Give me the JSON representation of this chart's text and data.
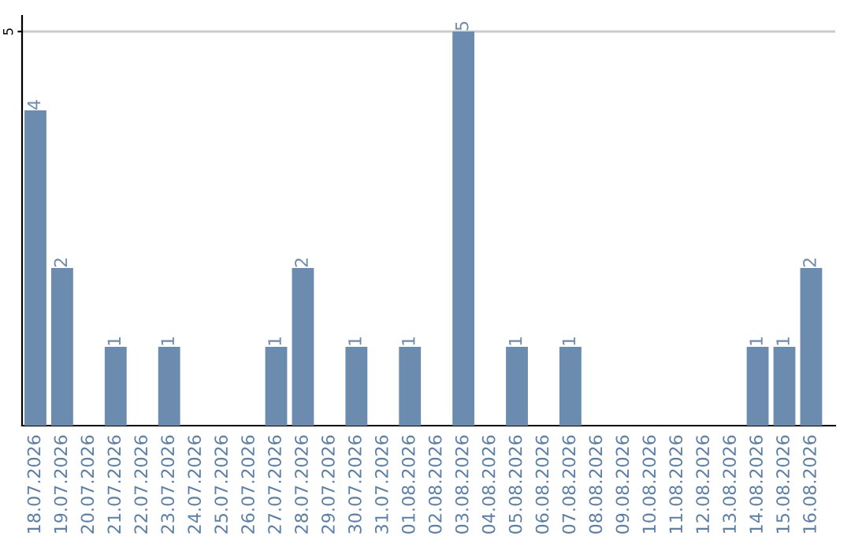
{
  "chart_data": {
    "type": "bar",
    "categories": [
      "18.07.2026",
      "19.07.2026",
      "20.07.2026",
      "21.07.2026",
      "22.07.2026",
      "23.07.2026",
      "24.07.2026",
      "25.07.2026",
      "26.07.2026",
      "27.07.2026",
      "28.07.2026",
      "29.07.2026",
      "30.07.2026",
      "31.07.2026",
      "01.08.2026",
      "02.08.2026",
      "03.08.2026",
      "04.08.2026",
      "05.08.2026",
      "06.08.2026",
      "07.08.2026",
      "08.08.2026",
      "09.08.2026",
      "10.08.2026",
      "11.08.2026",
      "12.08.2026",
      "13.08.2026",
      "14.08.2026",
      "15.08.2026",
      "16.08.2026"
    ],
    "values": [
      4,
      2,
      0,
      1,
      0,
      1,
      0,
      0,
      0,
      1,
      2,
      0,
      1,
      0,
      1,
      0,
      5,
      0,
      1,
      0,
      1,
      0,
      0,
      0,
      0,
      0,
      0,
      1,
      1,
      2
    ],
    "value_labels": [
      "4",
      "2",
      null,
      "1",
      null,
      "1",
      null,
      null,
      null,
      "1",
      "2",
      null,
      "1",
      null,
      "1",
      null,
      "5",
      null,
      "1",
      null,
      "1",
      null,
      null,
      null,
      null,
      null,
      null,
      "1",
      "1",
      "2"
    ],
    "color": "#6b8cae",
    "ylim": [
      0,
      5.2
    ],
    "yticks": [
      5
    ],
    "grid": "y",
    "legend": false
  }
}
